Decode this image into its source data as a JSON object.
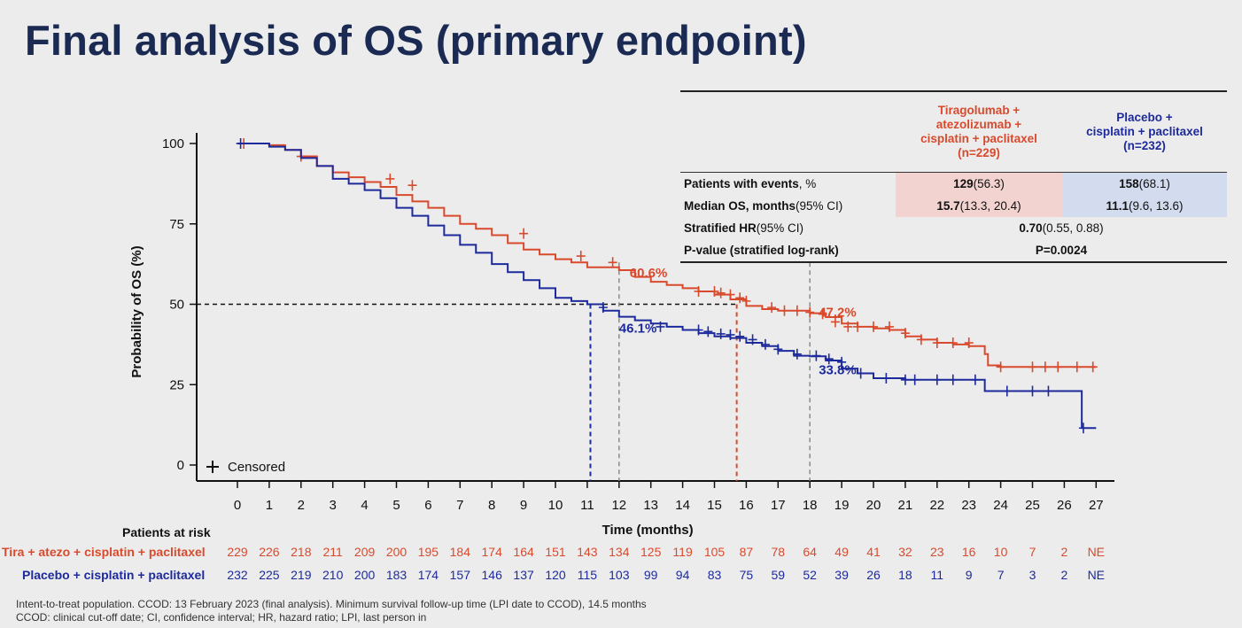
{
  "title": "Final analysis of OS (primary endpoint)",
  "chart_data": {
    "type": "line",
    "ylabel": "Probability of OS (%)",
    "xlabel": "Time (months)",
    "yticks": [
      0,
      25,
      50,
      75,
      100
    ],
    "xticks": [
      0,
      1,
      2,
      3,
      4,
      5,
      6,
      7,
      8,
      9,
      10,
      11,
      12,
      13,
      14,
      15,
      16,
      17,
      18,
      19,
      20,
      21,
      22,
      23,
      24,
      25,
      26,
      27
    ],
    "xlim": [
      0,
      27
    ],
    "ylim": [
      0,
      100
    ],
    "legend": {
      "symbol": "+",
      "label": "Censored"
    },
    "series": [
      {
        "name": "Tira + atezo + cisplatin + paclitaxel",
        "color": "#d94a2d",
        "points": [
          [
            0,
            100
          ],
          [
            1,
            99.5
          ],
          [
            1.5,
            98
          ],
          [
            2,
            96
          ],
          [
            2.5,
            93
          ],
          [
            3,
            91
          ],
          [
            3.5,
            89.5
          ],
          [
            4,
            88
          ],
          [
            4.5,
            86.5
          ],
          [
            5,
            84
          ],
          [
            5.5,
            82
          ],
          [
            6,
            80
          ],
          [
            6.5,
            77.5
          ],
          [
            7,
            75
          ],
          [
            7.5,
            73.5
          ],
          [
            8,
            71.5
          ],
          [
            8.5,
            69
          ],
          [
            9,
            67
          ],
          [
            9.5,
            65.5
          ],
          [
            10,
            64
          ],
          [
            10.5,
            63
          ],
          [
            11,
            61.5
          ],
          [
            12,
            60.6
          ],
          [
            12.5,
            58.5
          ],
          [
            13,
            57
          ],
          [
            13.5,
            56
          ],
          [
            14,
            55
          ],
          [
            14.5,
            54
          ],
          [
            15,
            53
          ],
          [
            15.5,
            51.5
          ],
          [
            16,
            49.5
          ],
          [
            16.5,
            48.5
          ],
          [
            17,
            48
          ],
          [
            18,
            47.2
          ],
          [
            18.5,
            46
          ],
          [
            19,
            44
          ],
          [
            19.5,
            43
          ],
          [
            20,
            42.5
          ],
          [
            20.5,
            42
          ],
          [
            21,
            40
          ],
          [
            21.5,
            39
          ],
          [
            22,
            38
          ],
          [
            22.5,
            37.5
          ],
          [
            23,
            37
          ],
          [
            23.5,
            34.5
          ],
          [
            23.6,
            31
          ],
          [
            24,
            30.5
          ],
          [
            26,
            30.5
          ],
          [
            27,
            30.5
          ]
        ],
        "censored": [
          [
            0.2,
            100
          ],
          [
            2,
            96
          ],
          [
            4.8,
            89
          ],
          [
            5.5,
            87
          ],
          [
            9,
            72
          ],
          [
            10.8,
            65
          ],
          [
            11.8,
            63
          ],
          [
            14.5,
            54
          ],
          [
            15,
            54
          ],
          [
            15.2,
            53.5
          ],
          [
            15.5,
            53
          ],
          [
            15.8,
            52
          ],
          [
            16,
            51
          ],
          [
            16.8,
            49
          ],
          [
            17.2,
            48
          ],
          [
            17.6,
            48
          ],
          [
            18,
            47.5
          ],
          [
            18.4,
            47
          ],
          [
            18.8,
            44.5
          ],
          [
            19.2,
            43
          ],
          [
            19.5,
            43
          ],
          [
            20,
            43
          ],
          [
            20.5,
            43
          ],
          [
            21,
            41
          ],
          [
            21.5,
            39
          ],
          [
            22,
            38
          ],
          [
            22.5,
            38
          ],
          [
            23,
            38
          ],
          [
            24,
            30.5
          ],
          [
            25,
            30.5
          ],
          [
            25.4,
            30.5
          ],
          [
            25.8,
            30.5
          ],
          [
            26.4,
            30.5
          ],
          [
            26.9,
            30.5
          ]
        ]
      },
      {
        "name": "Placebo + cisplatin + paclitaxel",
        "color": "#1d2a9c",
        "points": [
          [
            0,
            100
          ],
          [
            1,
            99
          ],
          [
            1.5,
            98
          ],
          [
            2,
            95.5
          ],
          [
            2.5,
            93
          ],
          [
            3,
            89
          ],
          [
            3.5,
            87.5
          ],
          [
            4,
            85.5
          ],
          [
            4.5,
            83
          ],
          [
            5,
            80
          ],
          [
            5.5,
            77.5
          ],
          [
            6,
            74.5
          ],
          [
            6.5,
            71.5
          ],
          [
            7,
            68.5
          ],
          [
            7.5,
            66
          ],
          [
            8,
            62.5
          ],
          [
            8.5,
            60
          ],
          [
            9,
            57.5
          ],
          [
            9.5,
            55
          ],
          [
            10,
            52
          ],
          [
            10.5,
            51
          ],
          [
            11,
            50
          ],
          [
            11.5,
            48
          ],
          [
            12,
            46.1
          ],
          [
            12.5,
            45
          ],
          [
            13,
            44
          ],
          [
            13.5,
            43
          ],
          [
            14,
            42
          ],
          [
            14.5,
            41
          ],
          [
            15,
            40
          ],
          [
            15.5,
            39.5
          ],
          [
            16,
            38
          ],
          [
            16.5,
            37
          ],
          [
            17,
            35.5
          ],
          [
            17.5,
            34
          ],
          [
            18,
            33.8
          ],
          [
            18.5,
            32.5
          ],
          [
            19,
            30
          ],
          [
            19.5,
            28.5
          ],
          [
            20,
            27
          ],
          [
            21,
            26.5
          ],
          [
            23,
            26.5
          ],
          [
            23.5,
            23
          ],
          [
            24,
            23
          ],
          [
            26,
            23
          ],
          [
            26.5,
            23
          ],
          [
            26.55,
            11.5
          ],
          [
            27,
            11.5
          ]
        ],
        "censored": [
          [
            0.1,
            100
          ],
          [
            11.5,
            49
          ],
          [
            13.3,
            43
          ],
          [
            14.5,
            42
          ],
          [
            14.8,
            41.5
          ],
          [
            15.2,
            40.8
          ],
          [
            15.5,
            40.5
          ],
          [
            15.8,
            40
          ],
          [
            16.2,
            39
          ],
          [
            16.6,
            37.5
          ],
          [
            17,
            36
          ],
          [
            17.6,
            34.5
          ],
          [
            18.2,
            34
          ],
          [
            18.6,
            33
          ],
          [
            19,
            32
          ],
          [
            19.6,
            28.5
          ],
          [
            20.4,
            27
          ],
          [
            21,
            26.5
          ],
          [
            21.3,
            26.5
          ],
          [
            22,
            26.5
          ],
          [
            22.5,
            26.5
          ],
          [
            23.2,
            26.5
          ],
          [
            24.2,
            23
          ],
          [
            25,
            23
          ],
          [
            25.5,
            23
          ],
          [
            26.6,
            11.5
          ]
        ]
      }
    ],
    "median_line": {
      "y": 50
    },
    "medians": [
      {
        "series": "Placebo + cisplatin + paclitaxel",
        "x": 11.1,
        "color": "#1d2a9c"
      },
      {
        "series": "Tira + atezo + cisplatin + paclitaxel",
        "x": 15.7,
        "color": "#d94a2d"
      }
    ],
    "landmarks": [
      12,
      18
    ],
    "annotations": [
      {
        "text": "60.6%",
        "x": 12,
        "y": 60.6,
        "color": "#d94a2d"
      },
      {
        "text": "46.1%",
        "x": 12,
        "y": 46.1,
        "color": "#1d2a9c"
      },
      {
        "text": "47.2%",
        "x": 18,
        "y": 47.2,
        "color": "#d94a2d"
      },
      {
        "text": "33.8%",
        "x": 18,
        "y": 33.8,
        "color": "#1d2a9c"
      }
    ]
  },
  "results_table": {
    "col1_header": [
      "Tiragolumab +",
      "atezolizumab +",
      "cisplatin + paclitaxel",
      "(n=229)"
    ],
    "col2_header": [
      "Placebo +",
      "cisplatin + paclitaxel",
      "(n=232)"
    ],
    "rows": {
      "events": {
        "label_bold": "Patients with events",
        "label_rest": ", %",
        "c1_bold": "129",
        "c1_rest": " (56.3)",
        "c2_bold": "158",
        "c2_rest": " (68.1)"
      },
      "median": {
        "label_bold": "Median OS, months",
        "label_rest": " (95% CI)",
        "c1_bold": "15.7",
        "c1_rest": " (13.3, 20.4)",
        "c2_bold": "11.1",
        "c2_rest": " (9.6, 13.6)"
      },
      "hr": {
        "label_bold": "Stratified HR",
        "label_rest": " (95% CI)",
        "val_bold": "0.70",
        "val_rest": " (0.55, 0.88)"
      },
      "pval": {
        "label_bold": "P-value (stratified log-rank)",
        "val_bold": "P=0.0024"
      }
    }
  },
  "risk": {
    "title": "Patients at risk",
    "red_label": "Tira + atezo + cisplatin + paclitaxel",
    "blue_label": "Placebo + cisplatin + paclitaxel",
    "red": [
      "229",
      "226",
      "218",
      "211",
      "209",
      "200",
      "195",
      "184",
      "174",
      "164",
      "151",
      "143",
      "134",
      "125",
      "119",
      "105",
      "87",
      "78",
      "64",
      "49",
      "41",
      "32",
      "23",
      "16",
      "10",
      "7",
      "2",
      "NE"
    ],
    "blue": [
      "232",
      "225",
      "219",
      "210",
      "200",
      "183",
      "174",
      "157",
      "146",
      "137",
      "120",
      "115",
      "103",
      "99",
      "94",
      "83",
      "75",
      "59",
      "52",
      "39",
      "26",
      "18",
      "11",
      "9",
      "7",
      "3",
      "2",
      "NE"
    ]
  },
  "footnotes": {
    "line1": "Intent-to-treat population. CCOD: 13 February 2023 (final analysis). Minimum survival follow-up time (LPI date to CCOD), 14.5 months",
    "line2": "CCOD: clinical cut-off date; CI, confidence interval; HR, hazard ratio; LPI, last person in"
  }
}
